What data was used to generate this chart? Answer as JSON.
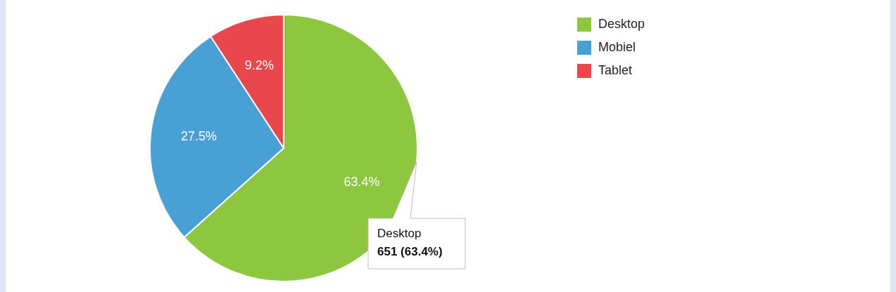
{
  "chart_data": {
    "type": "pie",
    "categories": [
      "Desktop",
      "Mobiel",
      "Tablet"
    ],
    "values": [
      63.4,
      27.5,
      9.2
    ],
    "colors": [
      "#8dc63f",
      "#48a0d5",
      "#e9474c"
    ],
    "value_labels": [
      "63.4%",
      "27.5%",
      "9.2%"
    ],
    "legend": "top right",
    "annotations": [
      "Desktop",
      "651 (63.4%)"
    ]
  }
}
